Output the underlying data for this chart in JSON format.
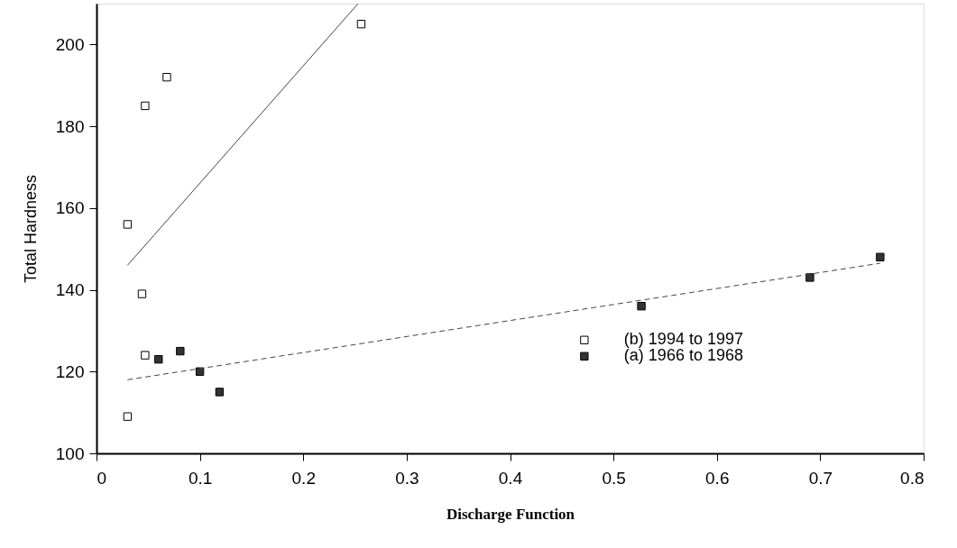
{
  "chart_data": {
    "type": "scatter",
    "xlabel": "Discharge Function",
    "ylabel": "Total Hardness",
    "xlim": [
      0,
      0.8
    ],
    "xticks": [
      0,
      0.1,
      0.2,
      0.3,
      0.4,
      0.5,
      0.6,
      0.7,
      0.8
    ],
    "ylim": [
      100,
      210
    ],
    "yticks": [
      100,
      120,
      140,
      160,
      180,
      200
    ],
    "grid": false,
    "legend": "right",
    "marker": "square",
    "series": [
      {
        "name": "(b) 1994 to 1997",
        "color": "#ffffff",
        "x": [
          0.03,
          0.03,
          0.044,
          0.047,
          0.047,
          0.068,
          0.256
        ],
        "values": [
          109,
          156,
          139,
          124,
          185,
          192,
          205
        ]
      },
      {
        "name": "(a) 1966 to 1968",
        "color": "#333333",
        "x": [
          0.06,
          0.081,
          0.1,
          0.119,
          0.527,
          0.69,
          0.758
        ],
        "values": [
          123,
          125,
          120,
          115,
          136,
          143,
          148
        ]
      },
      {
        "type": "line",
        "color": "#444444",
        "line_style": "solid",
        "marker": "none",
        "x": [
          0.03,
          0.253
        ],
        "values": [
          146,
          210
        ]
      },
      {
        "type": "line",
        "color": "#444444",
        "line_style": "dashed",
        "marker": "none",
        "x": [
          0.03,
          0.758
        ],
        "values": [
          118,
          146.5
        ]
      }
    ]
  }
}
